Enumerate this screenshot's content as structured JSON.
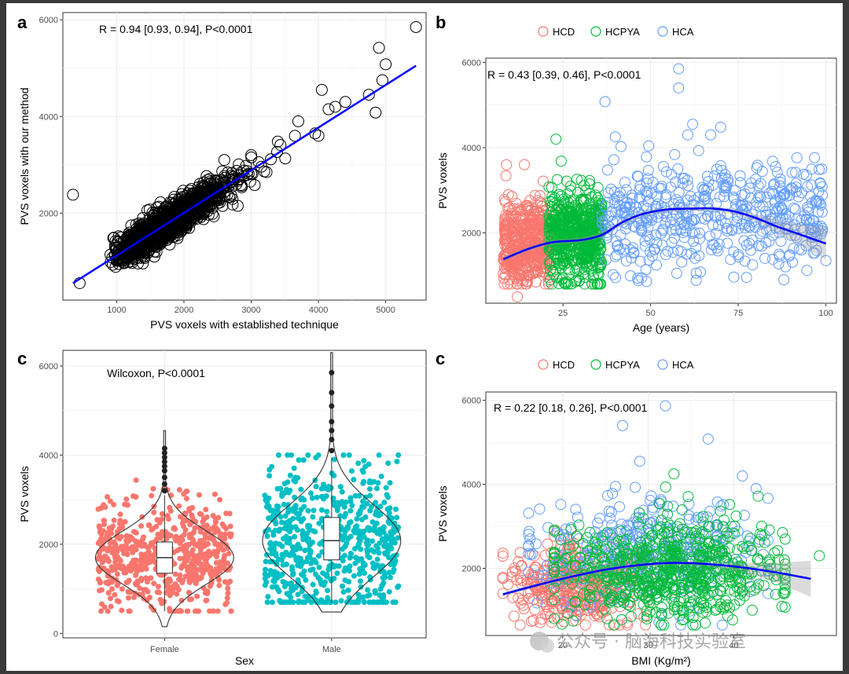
{
  "watermark": "公众号 · 脑海科技实验室",
  "chart_data": [
    {
      "panel": "a",
      "type": "scatter",
      "xlabel": "PVS voxels with established technique",
      "ylabel": "PVS voxels with our method",
      "annotation": "R = 0.94 [0.93, 0.94], P<0.0001",
      "xlim": [
        200,
        5600
      ],
      "ylim": [
        200,
        6150
      ],
      "xticks": [
        1000,
        2000,
        3000,
        4000,
        5000
      ],
      "yticks": [
        2000,
        4000,
        6000
      ],
      "grid": true,
      "point_color": "#000000",
      "fit_color": "#0000ff",
      "fit_line": {
        "x": [
          350,
          5450
        ],
        "y": [
          550,
          5050
        ]
      },
      "points": [
        {
          "x": 5450,
          "y": 5850
        },
        {
          "x": 4900,
          "y": 5420
        },
        {
          "x": 5000,
          "y": 5080
        },
        {
          "x": 4950,
          "y": 4750
        },
        {
          "x": 4050,
          "y": 4550
        },
        {
          "x": 4750,
          "y": 4450
        },
        {
          "x": 4850,
          "y": 4080
        },
        {
          "x": 4400,
          "y": 4300
        },
        {
          "x": 4250,
          "y": 4200
        },
        {
          "x": 4150,
          "y": 4150
        },
        {
          "x": 3950,
          "y": 3650
        },
        {
          "x": 4000,
          "y": 3600
        },
        {
          "x": 3700,
          "y": 3900
        },
        {
          "x": 3650,
          "y": 3600
        },
        {
          "x": 350,
          "y": 2380
        },
        {
          "x": 450,
          "y": 550
        },
        {
          "x": 2800,
          "y": 2150
        },
        {
          "x": 3000,
          "y": 3200
        },
        {
          "x": 2600,
          "y": 3100
        }
      ],
      "cloud": {
        "n": 1400,
        "x_range": [
          600,
          3700
        ],
        "seed": 7
      }
    },
    {
      "panel": "b",
      "type": "scatter",
      "xlabel": "Age (years)",
      "ylabel": "PVS voxels",
      "annotation": "R = 0.43 [0.39, 0.46], P<0.0001",
      "xlim": [
        3,
        103
      ],
      "ylim": [
        350,
        6100
      ],
      "xticks": [
        25,
        50,
        75,
        100
      ],
      "yticks": [
        2000,
        4000,
        6000
      ],
      "grid": true,
      "legend": {
        "position": "top",
        "entries": [
          {
            "name": "HCD",
            "color": "#f8766d"
          },
          {
            "name": "HCPYA",
            "color": "#00ba38"
          },
          {
            "name": "HCA",
            "color": "#619cff"
          }
        ]
      },
      "fit_color": "#0000ff",
      "fit_curve": {
        "x": [
          8,
          15,
          22,
          30,
          36,
          42,
          48,
          55,
          62,
          68,
          74,
          80,
          86,
          92,
          100
        ],
        "y": [
          1380,
          1620,
          1780,
          1830,
          1950,
          2250,
          2450,
          2550,
          2570,
          2570,
          2500,
          2350,
          2150,
          1980,
          1750
        ]
      },
      "outliers": [
        {
          "x": 58,
          "y": 5850,
          "group": "HCA"
        },
        {
          "x": 58,
          "y": 5400,
          "group": "HCA"
        },
        {
          "x": 37,
          "y": 5080,
          "group": "HCA"
        },
        {
          "x": 62,
          "y": 4550,
          "group": "HCA"
        },
        {
          "x": 70,
          "y": 4480,
          "group": "HCA"
        },
        {
          "x": 99,
          "y": 2100,
          "group": "HCA"
        },
        {
          "x": 100,
          "y": 1350,
          "group": "HCA"
        },
        {
          "x": 88,
          "y": 900,
          "group": "HCA"
        },
        {
          "x": 12,
          "y": 500,
          "group": "HCD"
        },
        {
          "x": 14,
          "y": 3600,
          "group": "HCD"
        },
        {
          "x": 23,
          "y": 4200,
          "group": "HCPYA"
        }
      ],
      "groups": [
        {
          "name": "HCD",
          "n": 450,
          "x_range": [
            8,
            21
          ],
          "y_center": 1750,
          "y_sd": 520
        },
        {
          "name": "HCPYA",
          "n": 550,
          "x_range": [
            21,
            36
          ],
          "y_center": 1950,
          "y_sd": 560
        },
        {
          "name": "HCA",
          "n": 500,
          "x_range": [
            36,
            99
          ],
          "y_center": 2450,
          "y_sd": 620
        }
      ]
    },
    {
      "panel": "c",
      "type": "violin",
      "xlabel": "Sex",
      "ylabel": "PVS voxels",
      "annotation": "Wilcoxon, P<0.0001",
      "ylim": [
        -100,
        6350
      ],
      "yticks": [
        0,
        2000,
        4000,
        6000
      ],
      "categories": [
        "Female",
        "Male"
      ],
      "grid": true,
      "series": [
        {
          "name": "Female",
          "color": "#f8766d",
          "n": 650,
          "violin_min": 150,
          "violin_max": 4550,
          "median": 1700,
          "q1": 1350,
          "q3": 2050,
          "whisker_low": 500,
          "whisker_high": 3100,
          "outliers": [
            3200,
            3350,
            3500,
            3650,
            3750,
            3850,
            3950,
            4050,
            4150
          ]
        },
        {
          "name": "Male",
          "color": "#00bfc4",
          "n": 650,
          "violin_min": 480,
          "violin_max": 6300,
          "median": 2080,
          "q1": 1650,
          "q3": 2600,
          "whisker_low": 700,
          "whisker_high": 3950,
          "outliers": [
            4100,
            4350,
            4550,
            4750,
            5100,
            5400,
            5850
          ]
        }
      ]
    },
    {
      "panel": "c",
      "type": "scatter",
      "xlabel": "BMI (Kg/m²)",
      "ylabel": "PVS voxels",
      "annotation": "R = 0.22 [0.18, 0.26], P<0.0001",
      "xlim": [
        11,
        52
      ],
      "ylim": [
        400,
        6200
      ],
      "xticks": [
        20,
        30,
        40
      ],
      "yticks": [
        2000,
        4000,
        6000
      ],
      "grid": true,
      "legend": {
        "position": "top",
        "entries": [
          {
            "name": "HCD",
            "color": "#f8766d"
          },
          {
            "name": "HCPYA",
            "color": "#00ba38"
          },
          {
            "name": "HCA",
            "color": "#619cff"
          }
        ]
      },
      "fit_color": "#0000ff",
      "fit_curve": {
        "x": [
          13,
          17,
          21,
          25,
          29,
          33,
          37,
          41,
          45,
          49
        ],
        "y": [
          1380,
          1600,
          1800,
          1970,
          2080,
          2130,
          2100,
          2020,
          1900,
          1750
        ]
      },
      "outliers": [
        {
          "x": 32,
          "y": 5870,
          "group": "HCA"
        },
        {
          "x": 27,
          "y": 5400,
          "group": "HCA"
        },
        {
          "x": 37,
          "y": 5080,
          "group": "HCA"
        },
        {
          "x": 29,
          "y": 4550,
          "group": "HCA"
        },
        {
          "x": 50,
          "y": 2300,
          "group": "HCPYA"
        },
        {
          "x": 33,
          "y": 4250,
          "group": "HCPYA"
        },
        {
          "x": 41,
          "y": 4200,
          "group": "HCA"
        }
      ],
      "groups": [
        {
          "name": "HCD",
          "n": 380,
          "x_range": [
            13,
            30
          ],
          "y_center": 1600,
          "y_sd": 480
        },
        {
          "name": "HCA",
          "n": 350,
          "x_range": [
            16,
            44
          ],
          "y_center": 2400,
          "y_sd": 650
        },
        {
          "name": "HCPYA",
          "n": 650,
          "x_range": [
            19,
            46
          ],
          "y_center": 1950,
          "y_sd": 560
        }
      ]
    }
  ]
}
